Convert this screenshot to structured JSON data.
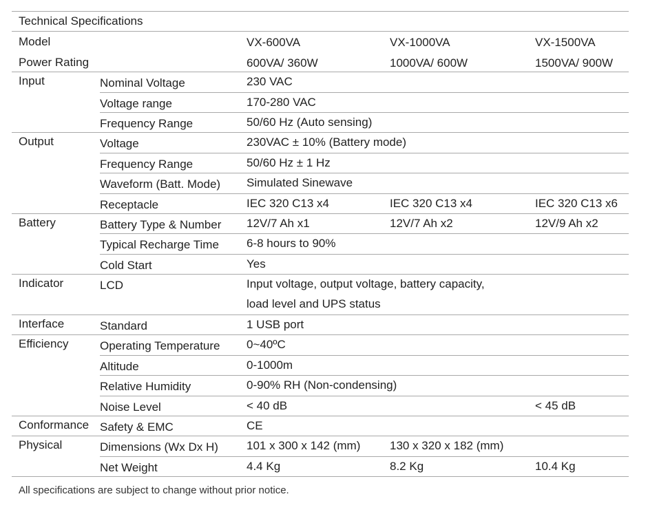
{
  "title": "Technical Specifications",
  "header_rows": [
    {
      "label": "Model",
      "values": [
        "VX-600VA",
        "VX-1000VA",
        "VX-1500VA"
      ]
    },
    {
      "label": "Power Rating",
      "values": [
        "600VA/ 360W",
        "1000VA/ 600W",
        "1500VA/ 900W"
      ]
    }
  ],
  "groups": [
    {
      "label": "Input",
      "rows": [
        {
          "label": "Nominal Voltage",
          "values": [
            "230 VAC"
          ]
        },
        {
          "label": "Voltage range",
          "values": [
            "170-280 VAC"
          ]
        },
        {
          "label": "Frequency Range",
          "values": [
            "50/60 Hz (Auto sensing)"
          ]
        }
      ]
    },
    {
      "label": "Output",
      "rows": [
        {
          "label": "Voltage",
          "values": [
            "230VAC ± 10% (Battery mode)"
          ]
        },
        {
          "label": "Frequency Range",
          "values": [
            "50/60 Hz ± 1 Hz"
          ]
        },
        {
          "label": "Waveform (Batt. Mode)",
          "values": [
            "Simulated Sinewave"
          ]
        },
        {
          "label": "Receptacle",
          "values": [
            "IEC 320 C13 x4",
            "IEC 320 C13 x4",
            "IEC 320 C13 x6"
          ]
        }
      ]
    },
    {
      "label": "Battery",
      "rows": [
        {
          "label": "Battery Type & Number",
          "values": [
            "12V/7 Ah x1",
            "12V/7 Ah x2",
            "12V/9 Ah x2"
          ]
        },
        {
          "label": "Typical Recharge Time",
          "values": [
            "6-8 hours to 90%"
          ]
        },
        {
          "label": "Cold Start",
          "values": [
            "Yes"
          ]
        }
      ]
    },
    {
      "label": "Indicator",
      "rows": [
        {
          "label": "LCD",
          "values": [
            "Input voltage, output voltage, battery capacity,"
          ],
          "continuation": "load level and UPS status"
        }
      ]
    },
    {
      "label": "Interface",
      "rows": [
        {
          "label": "Standard",
          "values": [
            "1 USB port"
          ]
        }
      ]
    },
    {
      "label": "Efficiency",
      "rows": [
        {
          "label": "Operating Temperature",
          "values": [
            "0~40ºC"
          ]
        },
        {
          "label": "Altitude",
          "values": [
            "0-1000m"
          ]
        },
        {
          "label": "Relative Humidity",
          "values": [
            "0-90% RH (Non-condensing)"
          ]
        },
        {
          "label": "Noise Level",
          "values": [
            "< 40 dB",
            "",
            "< 45 dB"
          ]
        }
      ]
    },
    {
      "label": "Conformance",
      "rows": [
        {
          "label": "Safety & EMC",
          "values": [
            "CE"
          ]
        }
      ]
    },
    {
      "label": "Physical",
      "rows": [
        {
          "label": "Dimensions (Wx Dx H)",
          "values": [
            "101 x 300 x 142 (mm)",
            "130 x 320 x 182 (mm)"
          ]
        },
        {
          "label": "Net Weight",
          "values": [
            "4.4 Kg",
            "8.2 Kg",
            "10.4 Kg"
          ]
        }
      ]
    }
  ],
  "footer": "All specifications are subject to change without prior notice."
}
